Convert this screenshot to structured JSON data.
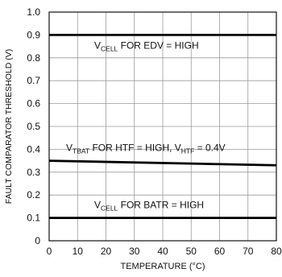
{
  "chart_data": {
    "type": "line",
    "xlabel": "TEMPERATURE (°C)",
    "ylabel": "FAULT COMPARATOR THRESHOLD (V)",
    "xlim": [
      0,
      80
    ],
    "ylim": [
      0,
      1.0
    ],
    "x_ticks": [
      "0",
      "10",
      "20",
      "30",
      "40",
      "50",
      "60",
      "70",
      "80"
    ],
    "y_ticks": [
      "0",
      "0.1",
      "0.2",
      "0.3",
      "0.4",
      "0.5",
      "0.6",
      "0.7",
      "0.8",
      "0.9",
      "1.0"
    ],
    "grid": true,
    "series": [
      {
        "label_main": "V",
        "label_sub": "CELL",
        "label_rest": " FOR EDV = HIGH",
        "x": [
          0,
          80
        ],
        "y": [
          0.9,
          0.9
        ]
      },
      {
        "label_main": "V",
        "label_sub": "TBAT",
        "label_rest": " FOR HTF = HIGH, V",
        "label_sub2": "HTF",
        "label_rest2": " = 0.4V",
        "x": [
          0,
          80
        ],
        "y": [
          0.35,
          0.33
        ]
      },
      {
        "label_main": "V",
        "label_sub": "CELL",
        "label_rest": " FOR BATR = HIGH",
        "x": [
          0,
          80
        ],
        "y": [
          0.1,
          0.1
        ]
      }
    ]
  }
}
